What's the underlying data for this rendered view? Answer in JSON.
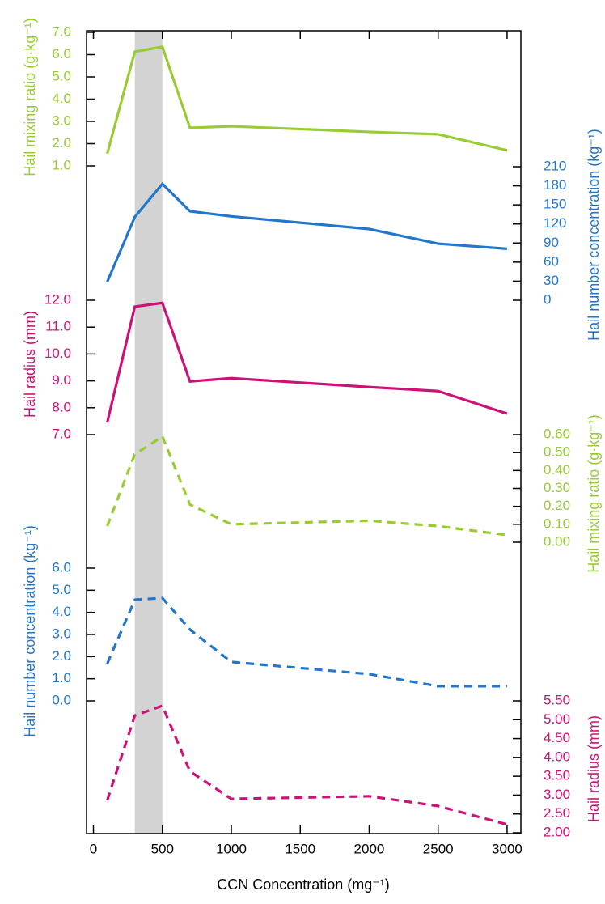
{
  "chart_data": {
    "type": "line",
    "x": [
      100,
      300,
      500,
      700,
      1000,
      2000,
      2500,
      3000
    ],
    "xlim": [
      -50,
      3100
    ],
    "xticks": [
      0,
      500,
      1000,
      1500,
      2000,
      2500,
      3000
    ],
    "xlabel": "CCN Concentration (mg⁻¹)",
    "highlight": [
      300,
      500
    ],
    "highlight_color": "#d3d3d3",
    "panels": [
      {
        "name": "Hail mixing ratio (g·kg⁻¹)",
        "side": "left",
        "color": "#99cc33",
        "dashed": false,
        "ylim": [
          1,
          7
        ],
        "yticks": [
          {
            "value": 1,
            "label": "1.0"
          },
          {
            "value": 2,
            "label": "2.0"
          },
          {
            "value": 3,
            "label": "3.0"
          },
          {
            "value": 4,
            "label": "4.0"
          },
          {
            "value": 5,
            "label": "5.0"
          },
          {
            "value": 6,
            "label": "6.0"
          },
          {
            "value": 7,
            "label": "7.0"
          }
        ],
        "values": [
          1.55,
          6.13,
          6.35,
          2.71,
          2.78,
          2.53,
          2.42,
          1.7
        ]
      },
      {
        "name": "Hail number concentration (kg⁻¹)",
        "side": "right",
        "color": "#2277cc",
        "dashed": false,
        "ylim": [
          0,
          210
        ],
        "yticks": [
          0,
          30,
          60,
          90,
          120,
          150,
          180,
          210
        ],
        "values": [
          29,
          131,
          183,
          140,
          132,
          112,
          89,
          81
        ]
      },
      {
        "name": "Hail radius (mm)",
        "side": "left",
        "color": "#cc1177",
        "dashed": false,
        "ylim": [
          7,
          12
        ],
        "yticks": [
          {
            "value": 7,
            "label": "7.0"
          },
          {
            "value": 8,
            "label": "8.0"
          },
          {
            "value": 9,
            "label": "9.0"
          },
          {
            "value": 10,
            "label": "10.0"
          },
          {
            "value": 11,
            "label": "11.0"
          },
          {
            "value": 12,
            "label": "12.0"
          }
        ],
        "values": [
          7.45,
          11.76,
          11.9,
          8.98,
          9.1,
          8.77,
          8.62,
          7.78
        ]
      },
      {
        "name": "Hail mixing ratio (g·kg⁻¹)",
        "side": "right",
        "color": "#99cc33",
        "dashed": true,
        "ylim": [
          0,
          0.6
        ],
        "yticks": [
          {
            "value": 0,
            "label": "0.00"
          },
          {
            "value": 0.1,
            "label": "0.10"
          },
          {
            "value": 0.2,
            "label": "0.20"
          },
          {
            "value": 0.3,
            "label": "0.30"
          },
          {
            "value": 0.4,
            "label": "0.40"
          },
          {
            "value": 0.5,
            "label": "0.50"
          },
          {
            "value": 0.6,
            "label": "0.60"
          }
        ],
        "values": [
          0.09,
          0.49,
          0.59,
          0.21,
          0.1,
          0.12,
          0.09,
          0.04
        ]
      },
      {
        "name": "Hail number concentration (kg⁻¹)",
        "side": "left",
        "color": "#2277cc",
        "dashed": true,
        "ylim": [
          0,
          6
        ],
        "yticks": [
          {
            "value": 0,
            "label": "0.0"
          },
          {
            "value": 1,
            "label": "1.0"
          },
          {
            "value": 2,
            "label": "2.0"
          },
          {
            "value": 3,
            "label": "3.0"
          },
          {
            "value": 4,
            "label": "4.0"
          },
          {
            "value": 5,
            "label": "5.0"
          },
          {
            "value": 6,
            "label": "6.0"
          }
        ],
        "values": [
          1.68,
          4.57,
          4.65,
          3.22,
          1.76,
          1.21,
          0.66,
          0.66
        ]
      },
      {
        "name": "Hail radius (mm)",
        "side": "right",
        "color": "#cc1177",
        "dashed": true,
        "ylim": [
          2,
          5.5
        ],
        "yticks": [
          {
            "value": 2,
            "label": "2.00"
          },
          {
            "value": 2.5,
            "label": "2.50"
          },
          {
            "value": 3,
            "label": "3.00"
          },
          {
            "value": 3.5,
            "label": "3.50"
          },
          {
            "value": 4,
            "label": "4.00"
          },
          {
            "value": 4.5,
            "label": "4.50"
          },
          {
            "value": 5,
            "label": "5.00"
          },
          {
            "value": 5.5,
            "label": "5.50"
          }
        ],
        "values": [
          2.86,
          5.11,
          5.37,
          3.63,
          2.9,
          2.97,
          2.71,
          2.22
        ]
      }
    ]
  }
}
